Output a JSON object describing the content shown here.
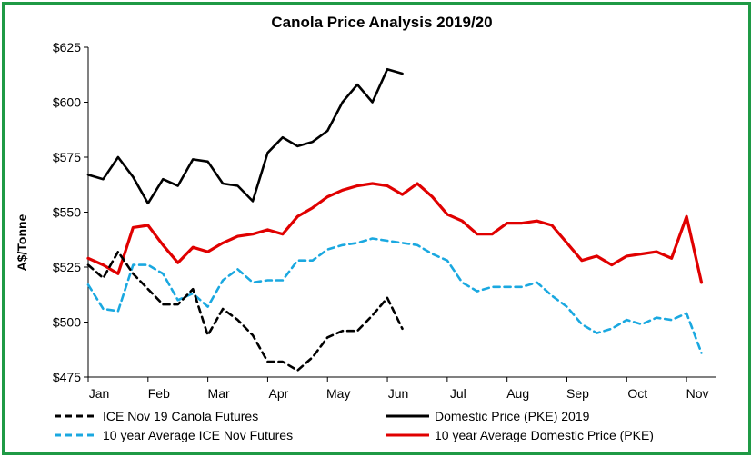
{
  "chart_data": {
    "type": "line",
    "title": "Canola Price Analysis 2019/20",
    "ylabel": "A$/Tonne",
    "xlabel": "",
    "ylim": [
      475,
      625
    ],
    "yticks": [
      475,
      500,
      525,
      550,
      575,
      600,
      625
    ],
    "ytick_labels": [
      "$475",
      "$500",
      "$525",
      "$550",
      "$575",
      "$600",
      "$625"
    ],
    "x_domain": [
      0,
      42
    ],
    "xticks": [
      0,
      4,
      8,
      12,
      16,
      20,
      24,
      28,
      32,
      36,
      40
    ],
    "xtick_labels": [
      "Jan",
      "Feb",
      "Mar",
      "Apr",
      "May",
      "Jun",
      "Jul",
      "Aug",
      "Sep",
      "Oct",
      "Nov"
    ],
    "grid": false,
    "legend": "bottom",
    "series": [
      {
        "name": "ICE Nov 19 Canola Futures",
        "color": "#000000",
        "dash": true,
        "x": [
          0,
          1,
          2,
          3,
          4,
          5,
          6,
          7,
          8,
          9,
          10,
          11,
          12,
          13,
          14,
          15,
          16,
          17,
          18,
          19,
          20,
          21
        ],
        "values": [
          526,
          520,
          532,
          522,
          515,
          508,
          508,
          515,
          494,
          506,
          501,
          494,
          482,
          482,
          478,
          484,
          493,
          496,
          496,
          503,
          511,
          497
        ]
      },
      {
        "name": "Domestic Price (PKE) 2019",
        "color": "#000000",
        "dash": false,
        "x": [
          0,
          1,
          2,
          3,
          4,
          5,
          6,
          7,
          8,
          9,
          10,
          11,
          12,
          13,
          14,
          15,
          16,
          17,
          18,
          19,
          20,
          21
        ],
        "values": [
          567,
          565,
          575,
          566,
          554,
          565,
          562,
          574,
          573,
          563,
          562,
          555,
          577,
          584,
          580,
          582,
          587,
          600,
          608,
          600,
          615,
          613
        ]
      },
      {
        "name": "10 year Average ICE Nov Futures",
        "color": "#1aa8e0",
        "dash": true,
        "x": [
          0,
          1,
          2,
          3,
          4,
          5,
          6,
          7,
          8,
          9,
          10,
          11,
          12,
          13,
          14,
          15,
          16,
          17,
          18,
          19,
          20,
          21,
          22,
          23,
          24,
          25,
          26,
          27,
          28,
          29,
          30,
          31,
          32,
          33,
          34,
          35,
          36,
          37,
          38,
          39,
          40,
          41
        ],
        "values": [
          517,
          506,
          505,
          526,
          526,
          522,
          510,
          513,
          507,
          519,
          524,
          518,
          519,
          519,
          528,
          528,
          533,
          535,
          536,
          538,
          537,
          536,
          535,
          531,
          528,
          518,
          514,
          516,
          516,
          516,
          518,
          512,
          507,
          499,
          495,
          497,
          501,
          499,
          502,
          501,
          504,
          486
        ]
      },
      {
        "name": "10 year Average Domestic Price (PKE)",
        "color": "#e00000",
        "dash": false,
        "x": [
          0,
          1,
          2,
          3,
          4,
          5,
          6,
          7,
          8,
          9,
          10,
          11,
          12,
          13,
          14,
          15,
          16,
          17,
          18,
          19,
          20,
          21,
          22,
          23,
          24,
          25,
          26,
          27,
          28,
          29,
          30,
          31,
          32,
          33,
          34,
          35,
          36,
          37,
          38,
          39,
          40,
          41
        ],
        "values": [
          529,
          526,
          522,
          543,
          544,
          535,
          527,
          534,
          532,
          536,
          539,
          540,
          542,
          540,
          548,
          552,
          557,
          560,
          562,
          563,
          562,
          558,
          563,
          557,
          549,
          546,
          540,
          540,
          545,
          545,
          546,
          544,
          536,
          528,
          530,
          526,
          530,
          531,
          532,
          529,
          548,
          518
        ]
      }
    ]
  }
}
